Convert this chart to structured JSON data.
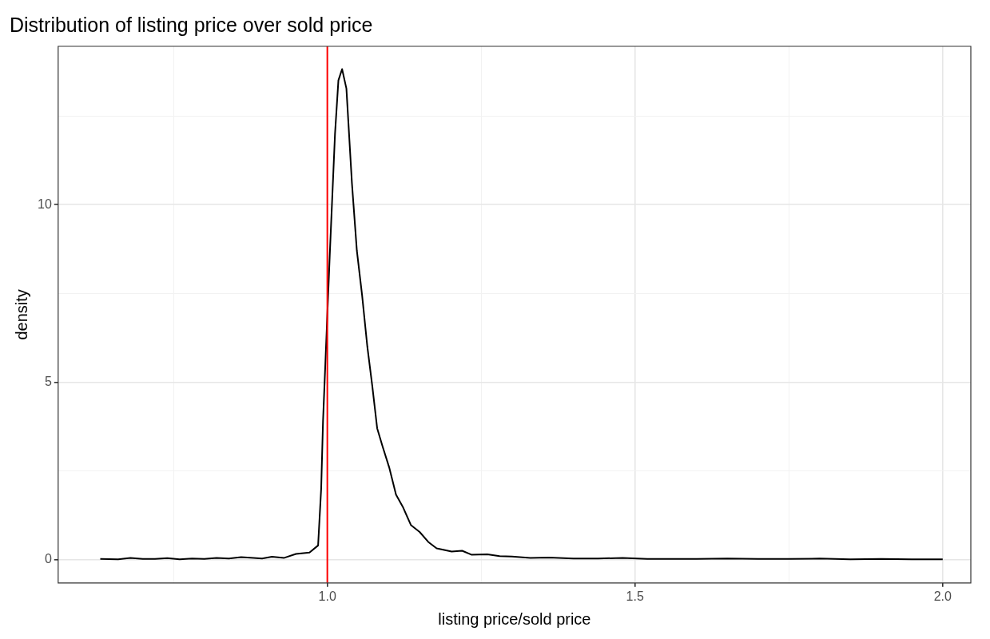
{
  "chart_data": {
    "type": "line",
    "title": "Distribution of listing price over sold price",
    "xlabel": "listing price/sold price",
    "ylabel": "density",
    "xlim": [
      0.5626,
      2.0457
    ],
    "ylim": [
      -0.656,
      14.46
    ],
    "xticks": [
      {
        "value": 0.75,
        "label": null
      },
      {
        "value": 1.0,
        "label": "1.0"
      },
      {
        "value": 1.25,
        "label": null
      },
      {
        "value": 1.5,
        "label": "1.5"
      },
      {
        "value": 1.75,
        "label": null
      },
      {
        "value": 2.0,
        "label": "2.0"
      }
    ],
    "yticks": [
      0,
      {
        "value": 2.5,
        "label": null
      },
      5,
      {
        "value": 7.5,
        "label": null
      },
      10,
      {
        "value": 12.5,
        "label": null
      }
    ],
    "grid": true,
    "marker": "none",
    "line_style": "solid",
    "series": [
      {
        "color": "#000000",
        "x": [
          0.631,
          0.66,
          0.68,
          0.7,
          0.72,
          0.74,
          0.76,
          0.78,
          0.8,
          0.82,
          0.84,
          0.86,
          0.88,
          0.894,
          0.91,
          0.93,
          0.949,
          0.971,
          0.985,
          0.99,
          0.993,
          1.004,
          1.007,
          1.0125,
          1.018,
          1.024,
          1.031,
          1.04,
          1.048,
          1.0565,
          1.065,
          1.073,
          1.081,
          1.0896,
          1.1005,
          1.1116,
          1.1226,
          1.136,
          1.15,
          1.164,
          1.1776,
          1.202,
          1.219,
          1.234,
          1.26,
          1.28,
          1.3,
          1.33,
          1.36,
          1.4,
          1.44,
          1.48,
          1.52,
          1.56,
          1.6,
          1.65,
          1.7,
          1.75,
          1.8,
          1.85,
          1.9,
          1.95,
          2.0
        ],
        "values": [
          0.02,
          0.01,
          0.05,
          0.02,
          0.02,
          0.04,
          0.01,
          0.03,
          0.02,
          0.05,
          0.03,
          0.07,
          0.05,
          0.03,
          0.08,
          0.05,
          0.16,
          0.2,
          0.4,
          2.0,
          3.9,
          8.6,
          9.8,
          12.0,
          13.5,
          13.82,
          13.27,
          10.6,
          8.7,
          7.45,
          6.0,
          4.9,
          3.7,
          3.2,
          2.6,
          1.83,
          1.49,
          0.97,
          0.78,
          0.5,
          0.32,
          0.23,
          0.25,
          0.14,
          0.15,
          0.1,
          0.09,
          0.05,
          0.06,
          0.03,
          0.03,
          0.05,
          0.02,
          0.02,
          0.02,
          0.03,
          0.02,
          0.02,
          0.03,
          0.01,
          0.02,
          0.01,
          0.01
        ]
      }
    ],
    "ref_lines": [
      {
        "axis": "x",
        "value": 1.0,
        "color": "#ff0000"
      }
    ]
  }
}
